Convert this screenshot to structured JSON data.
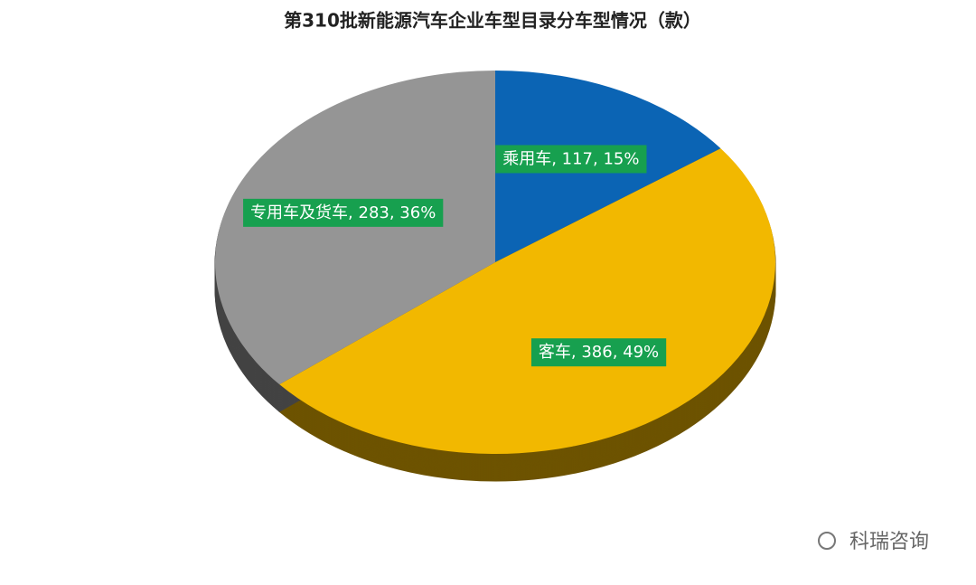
{
  "chart_data": {
    "type": "pie",
    "title": "第310批新能源汽车企业车型目录分车型情况（款）",
    "values": [
      117,
      386,
      283
    ],
    "value_labels": [
      "乘用车, 117, 15%",
      "客车, 386, 49%",
      "专用车及货车, 283, 36%"
    ],
    "colors": [
      "#0b64b4",
      "#f2b800",
      "#959595"
    ],
    "label_color": "#17a04f"
  },
  "footer": "科瑞咨询"
}
